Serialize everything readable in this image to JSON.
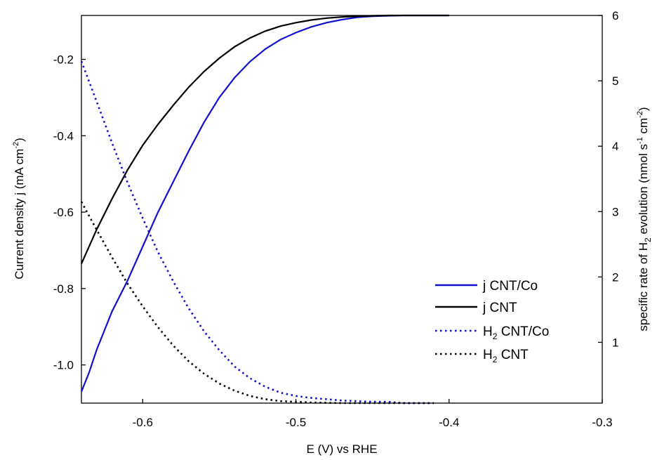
{
  "chart_data": {
    "type": "line",
    "title": "",
    "x_axis": {
      "label": "E (V) vs RHE",
      "range": [
        -0.64,
        -0.3
      ],
      "ticks": [
        -0.6,
        -0.5,
        -0.4,
        -0.3
      ],
      "tick_labels": [
        "-0.6",
        "-0.5",
        "-0.4",
        "-0.3"
      ]
    },
    "y_left": {
      "label_parts": [
        "Current density j (mA cm",
        "-2",
        ")"
      ],
      "range": [
        -1.1,
        -0.085
      ],
      "ticks": [
        -1.0,
        -0.8,
        -0.6,
        -0.4,
        -0.2
      ],
      "tick_labels": [
        "-1.0",
        "-0.8",
        "-0.6",
        "-0.4",
        "-0.2"
      ]
    },
    "y_right": {
      "label_parts": [
        "specific rate of H",
        "2",
        " evolution (nmol s",
        "-1",
        " cm",
        "-2",
        ")"
      ],
      "range": [
        0.07,
        6.0
      ],
      "ticks": [
        1,
        2,
        3,
        4,
        5,
        6
      ],
      "tick_labels": [
        "1",
        "2",
        "3",
        "4",
        "5",
        "6"
      ]
    },
    "grid": false,
    "legend_position": "lower-right",
    "series": [
      {
        "name": "j CNT/Co",
        "axis": "left",
        "color": "#1111cc",
        "style": "solid",
        "x": [
          -0.64,
          -0.635,
          -0.63,
          -0.62,
          -0.61,
          -0.6,
          -0.59,
          -0.58,
          -0.57,
          -0.56,
          -0.55,
          -0.54,
          -0.53,
          -0.52,
          -0.51,
          -0.5,
          -0.49,
          -0.48,
          -0.47,
          -0.46,
          -0.45,
          -0.44,
          -0.43,
          -0.42,
          -0.41,
          -0.4
        ],
        "y": [
          -1.07,
          -1.02,
          -0.96,
          -0.86,
          -0.78,
          -0.69,
          -0.6,
          -0.52,
          -0.44,
          -0.365,
          -0.3,
          -0.248,
          -0.206,
          -0.173,
          -0.148,
          -0.13,
          -0.115,
          -0.104,
          -0.096,
          -0.09,
          -0.087,
          -0.086,
          -0.085,
          -0.085,
          -0.085,
          -0.085
        ]
      },
      {
        "name": "j CNT",
        "axis": "left",
        "color": "#000000",
        "style": "solid",
        "x": [
          -0.64,
          -0.63,
          -0.62,
          -0.61,
          -0.6,
          -0.59,
          -0.58,
          -0.57,
          -0.56,
          -0.55,
          -0.54,
          -0.53,
          -0.52,
          -0.51,
          -0.5,
          -0.49,
          -0.48,
          -0.47,
          -0.46,
          -0.45,
          -0.44,
          -0.43,
          -0.42,
          -0.41,
          -0.4
        ],
        "y": [
          -0.735,
          -0.645,
          -0.565,
          -0.49,
          -0.425,
          -0.37,
          -0.32,
          -0.273,
          -0.232,
          -0.197,
          -0.167,
          -0.144,
          -0.126,
          -0.113,
          -0.104,
          -0.097,
          -0.092,
          -0.089,
          -0.087,
          -0.086,
          -0.085,
          -0.085,
          -0.085,
          -0.085,
          -0.085
        ]
      },
      {
        "name_parts": [
          "H",
          "2",
          " CNT/Co"
        ],
        "axis": "right",
        "color": "#1111cc",
        "style": "dotted",
        "x": [
          -0.64,
          -0.63,
          -0.62,
          -0.61,
          -0.6,
          -0.59,
          -0.58,
          -0.57,
          -0.56,
          -0.55,
          -0.54,
          -0.53,
          -0.52,
          -0.51,
          -0.5,
          -0.49,
          -0.48,
          -0.47,
          -0.46,
          -0.45,
          -0.44,
          -0.43,
          -0.42,
          -0.41
        ],
        "y": [
          5.3,
          4.68,
          4.05,
          3.45,
          2.9,
          2.38,
          1.93,
          1.52,
          1.17,
          0.88,
          0.63,
          0.45,
          0.32,
          0.23,
          0.18,
          0.15,
          0.13,
          0.11,
          0.1,
          0.09,
          0.09,
          0.07,
          0.07,
          0.07
        ]
      },
      {
        "name_parts": [
          "H",
          "2",
          " CNT"
        ],
        "axis": "right",
        "color": "#000000",
        "style": "dotted",
        "x": [
          -0.64,
          -0.63,
          -0.62,
          -0.61,
          -0.6,
          -0.59,
          -0.58,
          -0.57,
          -0.56,
          -0.55,
          -0.54,
          -0.53,
          -0.52,
          -0.51,
          -0.5,
          -0.49,
          -0.48,
          -0.47,
          -0.46,
          -0.45,
          -0.44,
          -0.43,
          -0.42,
          -0.41
        ],
        "y": [
          3.15,
          2.72,
          2.3,
          1.9,
          1.55,
          1.23,
          0.95,
          0.71,
          0.52,
          0.37,
          0.26,
          0.18,
          0.13,
          0.1,
          0.09,
          0.08,
          0.075,
          0.07,
          0.07,
          0.07,
          0.07,
          0.07,
          0.07,
          0.07
        ]
      }
    ]
  }
}
